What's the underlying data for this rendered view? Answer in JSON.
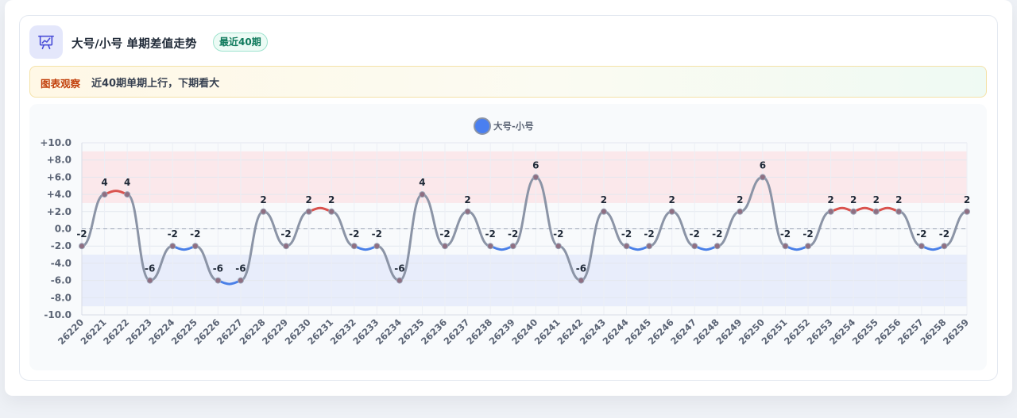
{
  "header": {
    "icon": "presentation-chart-icon",
    "title": "大号/小号 单期差值走势",
    "badge": "最近40期"
  },
  "observation": {
    "label": "图表观察",
    "text": "近40期单期上行，下期看大"
  },
  "colors": {
    "up": "#d9534f",
    "down": "#4a80e8",
    "neutral": "#8b94a6",
    "upper_band": "#fbe3e6",
    "lower_band": "#e4eafa"
  },
  "chart_data": {
    "type": "line",
    "legend": "大号-小号",
    "legend_position": "top-center",
    "x": [
      "26220",
      "26221",
      "26222",
      "26223",
      "26224",
      "26225",
      "26226",
      "26227",
      "26228",
      "26229",
      "26230",
      "26231",
      "26232",
      "26233",
      "26234",
      "26235",
      "26236",
      "26237",
      "26238",
      "26239",
      "26240",
      "26241",
      "26242",
      "26243",
      "26244",
      "26245",
      "26246",
      "26247",
      "26248",
      "26249",
      "26250",
      "26251",
      "26252",
      "26253",
      "26254",
      "26255",
      "26256",
      "26257",
      "26258",
      "26259"
    ],
    "series": [
      {
        "name": "大号-小号",
        "values": [
          -2,
          4,
          4,
          -6,
          -2,
          -2,
          -6,
          -6,
          2,
          -2,
          2,
          2,
          -2,
          -2,
          -6,
          4,
          -2,
          2,
          -2,
          -2,
          6,
          -2,
          -6,
          2,
          -2,
          -2,
          2,
          -2,
          -2,
          2,
          6,
          -2,
          -2,
          2,
          2,
          2,
          2,
          -2,
          -2,
          2
        ]
      }
    ],
    "ylim": [
      -10,
      10
    ],
    "yticks": [
      "+10.0",
      "+8.0",
      "+6.0",
      "+4.0",
      "+2.0",
      "0.0",
      "-2.0",
      "-4.0",
      "-6.0",
      "-8.0",
      "-10.0"
    ],
    "bands": [
      {
        "from": 3,
        "to": 9
      },
      {
        "from": -9,
        "to": -3
      }
    ],
    "reference_line": 0,
    "data_labels": [
      "-2",
      "4",
      "4",
      "-6",
      "-2",
      "-2",
      "-6",
      "-6",
      "2",
      "-2",
      "2",
      "2",
      "-2",
      "-2",
      "-6",
      "4",
      "-2",
      "2",
      "-2",
      "-2",
      "6",
      "-2",
      "-6",
      "2",
      "-2",
      "-2",
      "2",
      "-2",
      "-2",
      "2",
      "6",
      "-2",
      "-2",
      "2",
      "2",
      "2",
      "2",
      "-2",
      "-2",
      "2"
    ],
    "grid": true
  }
}
